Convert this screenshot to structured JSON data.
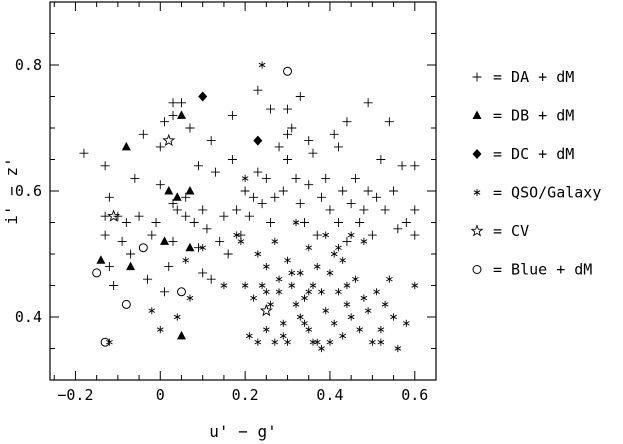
{
  "chart_data": {
    "type": "scatter",
    "xlabel": "u' − g'",
    "ylabel": "i' − z'",
    "xlim": [
      -0.26,
      0.65
    ],
    "ylim": [
      0.3,
      0.9
    ],
    "xticks": [
      -0.2,
      0,
      0.2,
      0.4,
      0.6
    ],
    "xtick_labels": [
      "−0.2",
      "0",
      "0.2",
      "0.4",
      "0.6"
    ],
    "yticks": [
      0.4,
      0.6,
      0.8
    ],
    "ytick_labels": [
      "0.4",
      "0.6",
      "0.8"
    ],
    "legend_position": "right",
    "series": [
      {
        "name": "= DA + dM",
        "marker": "plus",
        "points": [
          [
            -0.18,
            0.66
          ],
          [
            -0.13,
            0.64
          ],
          [
            -0.12,
            0.59
          ],
          [
            -0.13,
            0.56
          ],
          [
            -0.13,
            0.53
          ],
          [
            -0.12,
            0.48
          ],
          [
            -0.11,
            0.45
          ],
          [
            -0.1,
            0.56
          ],
          [
            -0.09,
            0.52
          ],
          [
            -0.08,
            0.55
          ],
          [
            -0.07,
            0.5
          ],
          [
            -0.06,
            0.62
          ],
          [
            -0.05,
            0.56
          ],
          [
            -0.04,
            0.69
          ],
          [
            -0.03,
            0.46
          ],
          [
            -0.02,
            0.53
          ],
          [
            -0.01,
            0.55
          ],
          [
            0.0,
            0.61
          ],
          [
            0.0,
            0.67
          ],
          [
            0.01,
            0.44
          ],
          [
            0.02,
            0.48
          ],
          [
            0.03,
            0.58
          ],
          [
            0.03,
            0.52
          ],
          [
            0.04,
            0.57
          ],
          [
            0.03,
            0.74
          ],
          [
            0.05,
            0.74
          ],
          [
            0.06,
            0.59
          ],
          [
            0.06,
            0.56
          ],
          [
            0.07,
            0.7
          ],
          [
            0.08,
            0.55
          ],
          [
            0.09,
            0.64
          ],
          [
            0.09,
            0.51
          ],
          [
            0.1,
            0.57
          ],
          [
            0.1,
            0.47
          ],
          [
            0.11,
            0.54
          ],
          [
            0.12,
            0.46
          ],
          [
            0.13,
            0.63
          ],
          [
            0.14,
            0.52
          ],
          [
            0.15,
            0.56
          ],
          [
            0.16,
            0.5
          ],
          [
            0.17,
            0.65
          ],
          [
            0.18,
            0.57
          ],
          [
            0.19,
            0.53
          ],
          [
            0.2,
            0.6
          ],
          [
            0.21,
            0.56
          ],
          [
            0.22,
            0.59
          ],
          [
            0.23,
            0.63
          ],
          [
            0.24,
            0.58
          ],
          [
            0.25,
            0.62
          ],
          [
            0.26,
            0.55
          ],
          [
            0.27,
            0.59
          ],
          [
            0.28,
            0.67
          ],
          [
            0.29,
            0.6
          ],
          [
            0.3,
            0.65
          ],
          [
            0.31,
            0.7
          ],
          [
            0.32,
            0.62
          ],
          [
            0.33,
            0.58
          ],
          [
            0.34,
            0.55
          ],
          [
            0.35,
            0.61
          ],
          [
            0.36,
            0.66
          ],
          [
            0.37,
            0.53
          ],
          [
            0.38,
            0.59
          ],
          [
            0.39,
            0.62
          ],
          [
            0.4,
            0.57
          ],
          [
            0.41,
            0.69
          ],
          [
            0.42,
            0.55
          ],
          [
            0.43,
            0.6
          ],
          [
            0.44,
            0.52
          ],
          [
            0.45,
            0.58
          ],
          [
            0.46,
            0.62
          ],
          [
            0.47,
            0.55
          ],
          [
            0.48,
            0.57
          ],
          [
            0.49,
            0.6
          ],
          [
            0.5,
            0.53
          ],
          [
            0.51,
            0.59
          ],
          [
            0.52,
            0.65
          ],
          [
            0.53,
            0.57
          ],
          [
            0.54,
            0.71
          ],
          [
            0.55,
            0.6
          ],
          [
            0.56,
            0.54
          ],
          [
            0.57,
            0.64
          ],
          [
            0.58,
            0.55
          ],
          [
            0.6,
            0.64
          ],
          [
            0.6,
            0.57
          ],
          [
            0.6,
            0.53
          ],
          [
            0.49,
            0.74
          ],
          [
            0.33,
            0.75
          ],
          [
            0.3,
            0.73
          ],
          [
            0.26,
            0.73
          ],
          [
            0.23,
            0.76
          ],
          [
            0.12,
            0.68
          ],
          [
            0.01,
            0.71
          ],
          [
            0.03,
            0.72
          ],
          [
            0.44,
            0.71
          ],
          [
            0.17,
            0.72
          ],
          [
            0.42,
            0.67
          ],
          [
            0.35,
            0.68
          ],
          [
            0.3,
            0.69
          ]
        ]
      },
      {
        "name": "= DB + dM",
        "marker": "filled-triangle",
        "points": [
          [
            -0.08,
            0.67
          ],
          [
            0.05,
            0.72
          ],
          [
            -0.14,
            0.49
          ],
          [
            -0.07,
            0.48
          ],
          [
            0.01,
            0.52
          ],
          [
            0.04,
            0.59
          ],
          [
            0.07,
            0.6
          ],
          [
            0.07,
            0.51
          ],
          [
            0.05,
            0.37
          ],
          [
            0.02,
            0.6
          ]
        ]
      },
      {
        "name": "= DC + dM",
        "marker": "filled-diamond",
        "points": [
          [
            0.1,
            0.75
          ],
          [
            0.23,
            0.68
          ]
        ]
      },
      {
        "name": "= QSO/Galaxy",
        "marker": "asterisk",
        "points": [
          [
            0.24,
            0.8
          ],
          [
            0.18,
            0.53
          ],
          [
            0.2,
            0.45
          ],
          [
            0.21,
            0.37
          ],
          [
            0.22,
            0.43
          ],
          [
            0.23,
            0.36
          ],
          [
            0.24,
            0.45
          ],
          [
            0.25,
            0.38
          ],
          [
            0.26,
            0.42
          ],
          [
            0.27,
            0.36
          ],
          [
            0.28,
            0.44
          ],
          [
            0.29,
            0.39
          ],
          [
            0.3,
            0.36
          ],
          [
            0.31,
            0.45
          ],
          [
            0.32,
            0.42
          ],
          [
            0.33,
            0.4
          ],
          [
            0.34,
            0.43
          ],
          [
            0.35,
            0.38
          ],
          [
            0.36,
            0.36
          ],
          [
            0.37,
            0.48
          ],
          [
            0.38,
            0.35
          ],
          [
            0.39,
            0.41
          ],
          [
            0.4,
            0.47
          ],
          [
            0.41,
            0.39
          ],
          [
            0.42,
            0.44
          ],
          [
            0.43,
            0.37
          ],
          [
            0.44,
            0.42
          ],
          [
            0.45,
            0.4
          ],
          [
            0.46,
            0.46
          ],
          [
            0.47,
            0.38
          ],
          [
            0.48,
            0.43
          ],
          [
            0.49,
            0.41
          ],
          [
            0.5,
            0.36
          ],
          [
            0.51,
            0.44
          ],
          [
            0.52,
            0.38
          ],
          [
            0.53,
            0.42
          ],
          [
            0.54,
            0.46
          ],
          [
            0.55,
            0.4
          ],
          [
            0.56,
            0.35
          ],
          [
            0.58,
            0.39
          ],
          [
            0.6,
            0.45
          ],
          [
            0.35,
            0.51
          ],
          [
            0.3,
            0.49
          ],
          [
            0.33,
            0.47
          ],
          [
            0.39,
            0.53
          ],
          [
            0.41,
            0.5
          ],
          [
            0.28,
            0.46
          ],
          [
            0.25,
            0.48
          ],
          [
            0.45,
            0.53
          ],
          [
            0.32,
            0.55
          ],
          [
            0.19,
            0.52
          ],
          [
            0.23,
            0.5
          ],
          [
            0.27,
            0.52
          ],
          [
            0.36,
            0.45
          ],
          [
            0.43,
            0.49
          ],
          [
            0.29,
            0.37
          ],
          [
            0.37,
            0.36
          ],
          [
            0.48,
            0.52
          ],
          [
            0.15,
            0.45
          ],
          [
            0.07,
            0.43
          ],
          [
            0.0,
            0.38
          ],
          [
            -0.02,
            0.41
          ],
          [
            0.04,
            0.4
          ],
          [
            0.06,
            0.49
          ],
          [
            0.1,
            0.51
          ],
          [
            -0.12,
            0.36
          ],
          [
            0.35,
            0.44
          ],
          [
            0.4,
            0.36
          ],
          [
            0.31,
            0.47
          ],
          [
            0.38,
            0.44
          ],
          [
            0.2,
            0.62
          ],
          [
            0.44,
            0.45
          ],
          [
            0.42,
            0.51
          ],
          [
            0.52,
            0.36
          ],
          [
            0.34,
            0.39
          ],
          [
            0.25,
            0.44
          ]
        ]
      },
      {
        "name": "= CV",
        "marker": "open-star",
        "points": [
          [
            -0.11,
            0.56
          ],
          [
            0.02,
            0.68
          ],
          [
            0.25,
            0.41
          ]
        ]
      },
      {
        "name": "= Blue + dM",
        "marker": "open-circle",
        "points": [
          [
            0.3,
            0.79
          ],
          [
            -0.04,
            0.51
          ],
          [
            -0.15,
            0.47
          ],
          [
            -0.08,
            0.42
          ],
          [
            0.05,
            0.44
          ],
          [
            -0.13,
            0.36
          ]
        ]
      }
    ]
  }
}
